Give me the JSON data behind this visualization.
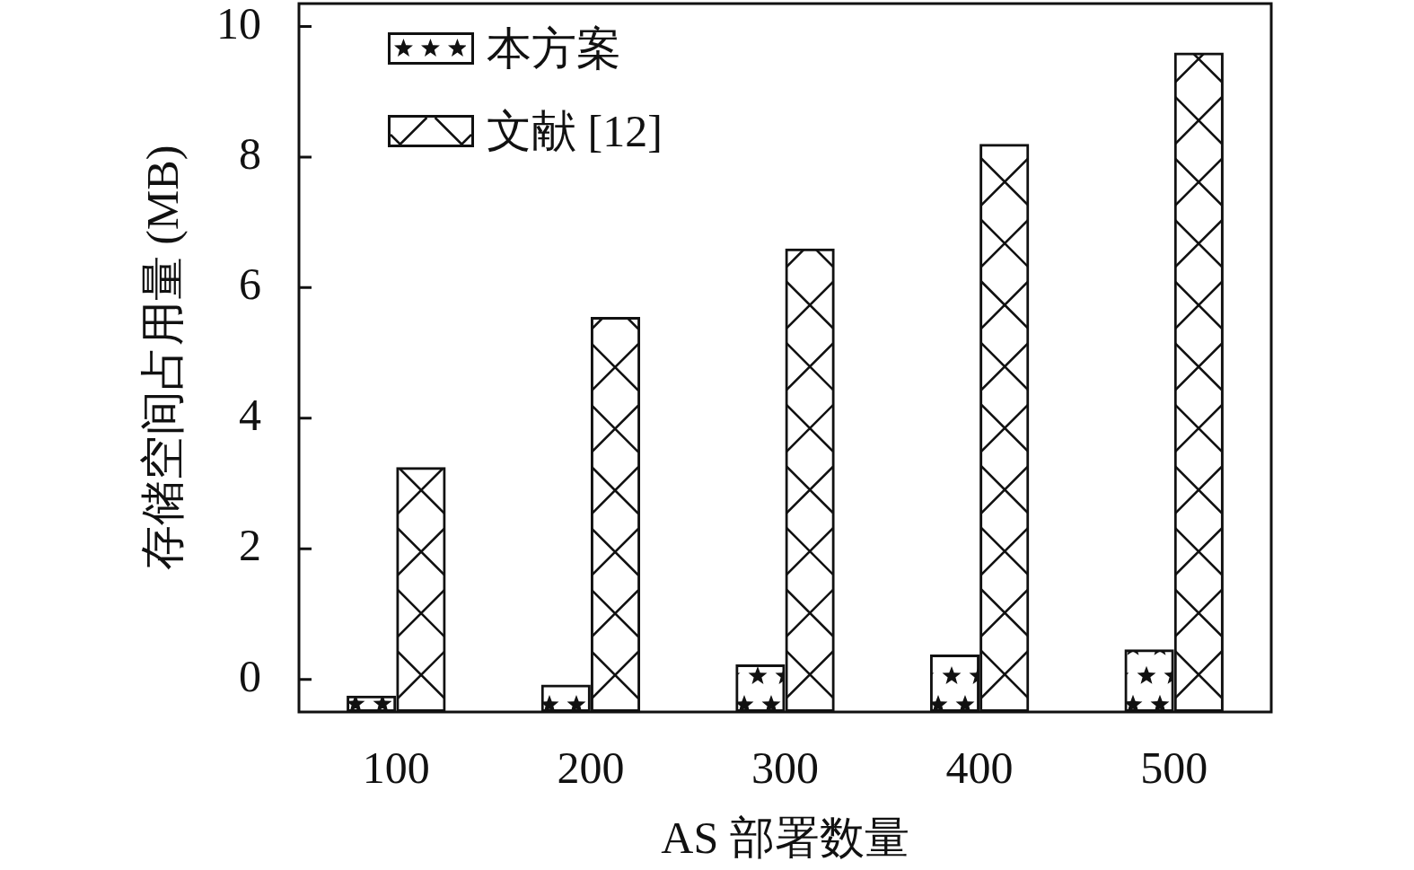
{
  "chart_data": {
    "type": "bar",
    "xlabel": "AS 部署数量",
    "ylabel": "存储空间占用量 (MB)",
    "categories": [
      "100",
      "200",
      "300",
      "400",
      "500"
    ],
    "series": [
      {
        "name": "本方案",
        "color": "#111111",
        "base": [
          -0.5,
          -0.5,
          -0.5,
          -0.5,
          -0.5
        ],
        "values": [
          0.25,
          0.42,
          0.73,
          0.88,
          0.96
        ]
      },
      {
        "name": "文献 [12]",
        "color": "#111111",
        "base": [
          -0.5,
          -0.5,
          -0.5,
          -0.5,
          -0.5
        ],
        "values": [
          3.75,
          6.05,
          7.1,
          8.7,
          10.1
        ]
      }
    ],
    "ylim": [
      -0.5,
      10.35
    ],
    "yticks": [
      0,
      2,
      4,
      6,
      8,
      10
    ],
    "legend": "top left"
  }
}
